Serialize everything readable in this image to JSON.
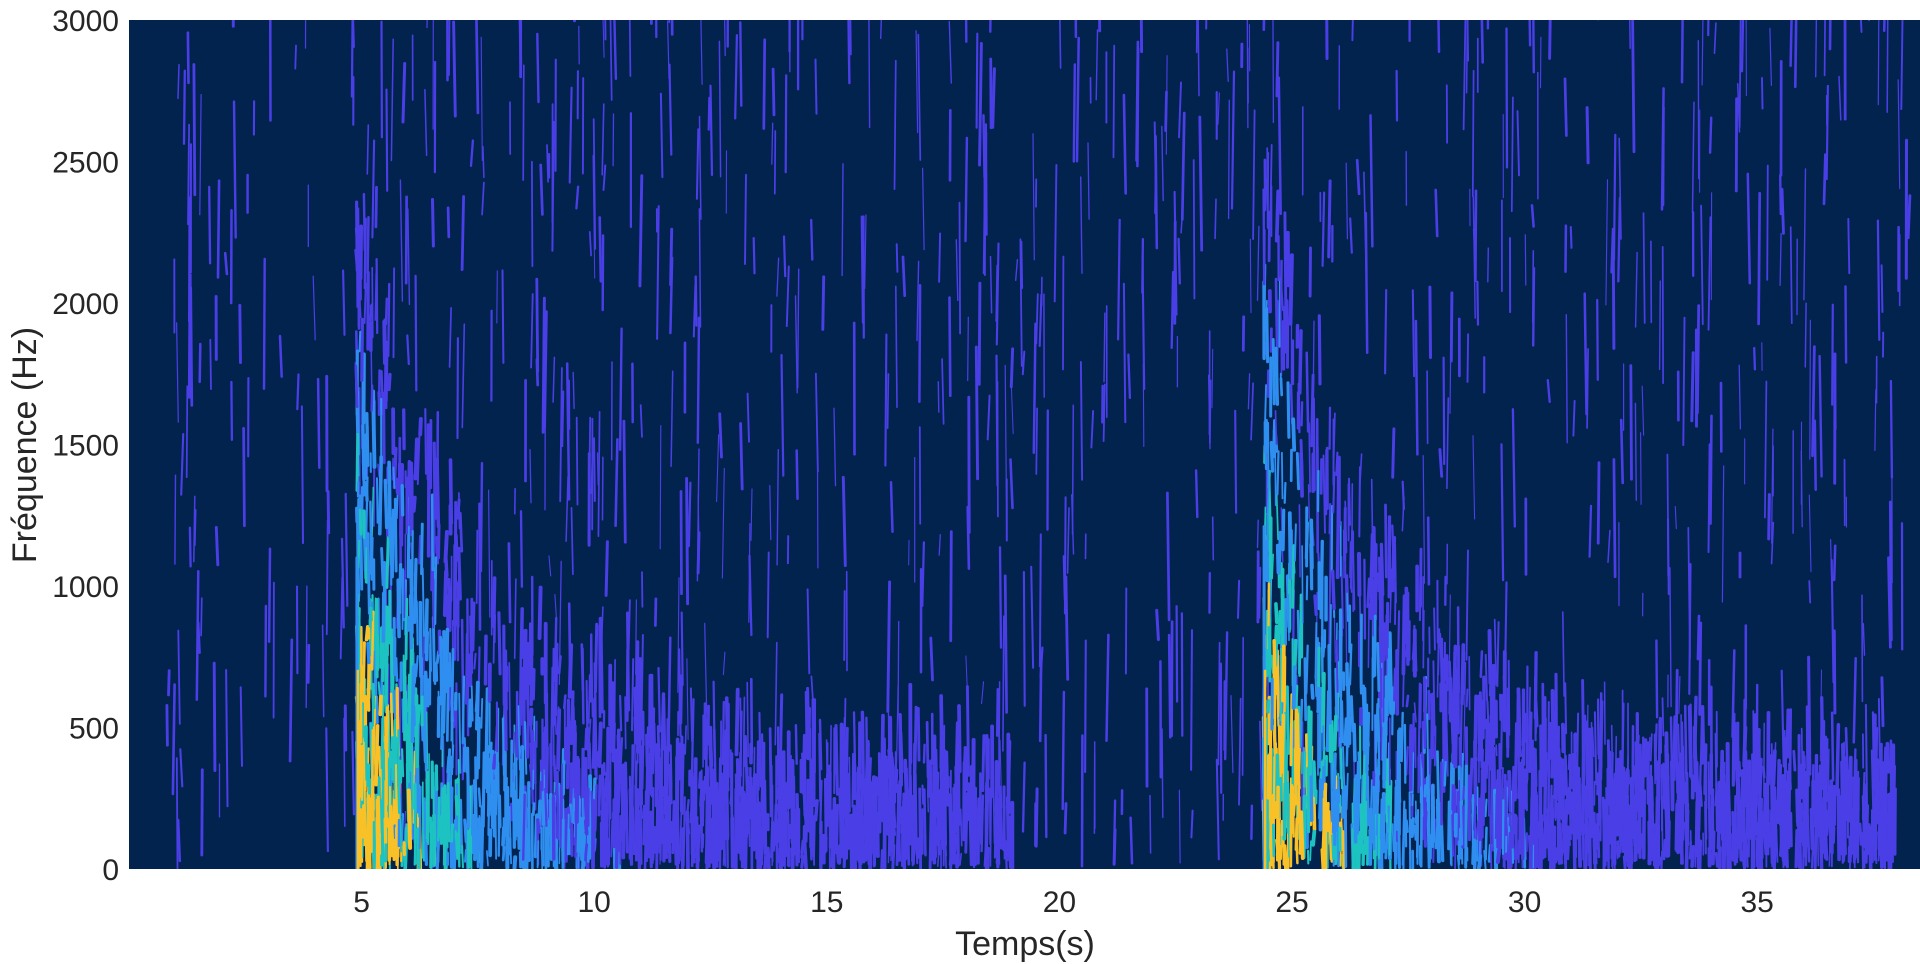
{
  "chart_data": {
    "type": "heatmap",
    "title": "",
    "xlabel": "Temps(s)",
    "ylabel": "Fréquence (Hz)",
    "xlim": [
      0,
      38.5
    ],
    "ylim": [
      0,
      3000
    ],
    "x_ticks": [
      5,
      10,
      15,
      20,
      25,
      30,
      35
    ],
    "x_tick_labels": [
      "5",
      "10",
      "15",
      "20",
      "25",
      "30",
      "35"
    ],
    "y_ticks": [
      0,
      500,
      1000,
      1500,
      2000,
      2500,
      3000
    ],
    "y_tick_labels": [
      "0",
      "500",
      "1000",
      "1500",
      "2000",
      "2500",
      "3000"
    ],
    "grid": false,
    "colormap": "parula",
    "colors": {
      "background": "#03234f",
      "low": "#4a3fe6",
      "mid": "#2f8ff0",
      "high": "#1cc3c0",
      "peak": "#f9c128"
    },
    "events": [
      {
        "onset_s": 4.9,
        "peak_freq_hz": 2000,
        "decay_end_s": 19,
        "label": ""
      },
      {
        "onset_s": 24.4,
        "peak_freq_hz": 2200,
        "decay_end_s": 38,
        "label": ""
      }
    ],
    "background_noise": {
      "from_s": 0.8,
      "to_s": 38.3,
      "max_freq_hz": 3000
    }
  }
}
